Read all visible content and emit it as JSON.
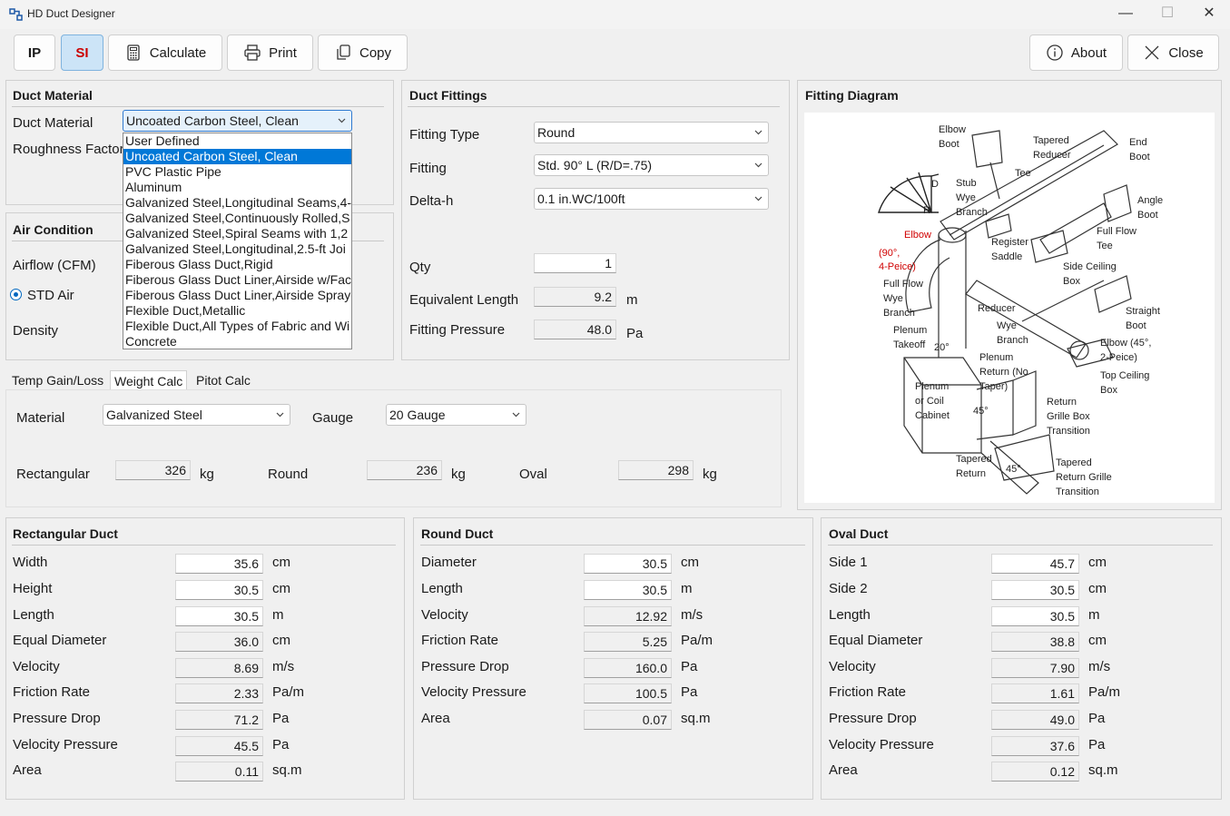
{
  "window": {
    "title": "HD Duct Designer",
    "minimize": "—",
    "maximize": "☐",
    "close": "✕"
  },
  "toolbar": {
    "ip": "IP",
    "si": "SI",
    "calculate": "Calculate",
    "print": "Print",
    "copy": "Copy",
    "about": "About",
    "close": "Close"
  },
  "duct_material": {
    "title": "Duct Material",
    "material_label": "Duct Material",
    "material_value": "Uncoated Carbon Steel, Clean",
    "roughness_label": "Roughness Factor",
    "options": [
      "User Defined",
      "Uncoated Carbon Steel, Clean",
      "PVC Plastic Pipe",
      "Aluminum",
      "Galvanized Steel,Longitudinal Seams,4-",
      "Galvanized Steel,Continuously Rolled,S",
      "Galvanized Steel,Spiral Seams with 1,2",
      "Galvanized Steel,Longitudinal,2.5-ft Joi",
      "Fiberous Glass Duct,Rigid",
      "Fiberous Glass Duct Liner,Airside w/Fac",
      "Fiberous Glass Duct Liner,Airside Spray",
      "Flexible Duct,Metallic",
      "Flexible Duct,All Types of Fabric and Wi",
      "Concrete"
    ],
    "selected_index": 1
  },
  "air_condition": {
    "title": "Air Condition",
    "airflow_label": "Airflow (CFM)",
    "std_air_label": "STD Air",
    "density_label": "Density"
  },
  "fittings": {
    "title": "Duct Fittings",
    "type_label": "Fitting Type",
    "type_value": "Round",
    "fitting_label": "Fitting",
    "fitting_value": "Std. 90° L (R/D=.75)",
    "deltah_label": "Delta-h",
    "deltah_value": "0.1 in.WC/100ft",
    "qty_label": "Qty",
    "qty_value": "1",
    "eqlen_label": "Equivalent Length",
    "eqlen_value": "9.2",
    "eqlen_unit": "m",
    "press_label": "Fitting Pressure",
    "press_value": "48.0",
    "press_unit": "Pa"
  },
  "tabs": [
    "Temp Gain/Loss",
    "Weight Calc",
    "Pitot Calc"
  ],
  "active_tab": 1,
  "weight": {
    "material_label": "Material",
    "material_value": "Galvanized Steel",
    "gauge_label": "Gauge",
    "gauge_value": "20 Gauge",
    "rect_label": "Rectangular",
    "rect_value": "326",
    "rect_unit": "kg",
    "round_label": "Round",
    "round_value": "236",
    "round_unit": "kg",
    "oval_label": "Oval",
    "oval_value": "298",
    "oval_unit": "kg"
  },
  "diagram": {
    "title": "Fitting Diagram",
    "labels": {
      "elbow_boot": [
        "Elbow",
        "Boot"
      ],
      "tapered_reducer": [
        "Tapered",
        "Reducer"
      ],
      "end_boot": [
        "End",
        "Boot"
      ],
      "tee": "Tee",
      "stub_wye": [
        "Stub",
        "Wye",
        "Branch"
      ],
      "angle_boot": [
        "Angle",
        "Boot"
      ],
      "elbow_red": [
        "Elbow",
        "(90°,",
        "4-Peice)"
      ],
      "register_saddle": [
        "Register",
        "Saddle"
      ],
      "full_flow_tee": [
        "Full Flow",
        "Tee"
      ],
      "side_ceiling": [
        "Side Ceiling",
        "Box"
      ],
      "full_flow_wye": [
        "Full Flow",
        "Wye",
        "Branch"
      ],
      "reducer": "Reducer",
      "wye_branch": [
        "Wye",
        "Branch"
      ],
      "straight_boot": [
        "Straight",
        "Boot"
      ],
      "plenum_takeoff": [
        "Plenum",
        "Takeoff"
      ],
      "plenum_return": [
        "Plenum",
        "Return (No",
        "Taper)"
      ],
      "elbow_45": [
        "Elbow (45°,",
        "2-Peice)"
      ],
      "top_ceiling": [
        "Top Ceiling",
        "Box"
      ],
      "plenum_coil": [
        "Plenum",
        "or Coil",
        "Cabinet"
      ],
      "return_grille": [
        "Return",
        "Grille Box",
        "Transition"
      ],
      "tapered_return": [
        "Tapered",
        "Return"
      ],
      "tapered_return_grille": [
        "Tapered",
        "Return Grille",
        "Transition"
      ],
      "d": "D",
      "r": "R",
      "deg20": "20°",
      "deg45a": "45°",
      "deg45b": "45°"
    }
  },
  "rect_duct": {
    "title": "Rectangular Duct",
    "rows": [
      {
        "label": "Width",
        "value": "35.6",
        "unit": "cm",
        "editable": true
      },
      {
        "label": "Height",
        "value": "30.5",
        "unit": "cm",
        "editable": true
      },
      {
        "label": "Length",
        "value": "30.5",
        "unit": "m",
        "editable": true
      },
      {
        "label": "Equal Diameter",
        "value": "36.0",
        "unit": "cm",
        "editable": false
      },
      {
        "label": "Velocity",
        "value": "8.69",
        "unit": "m/s",
        "editable": false
      },
      {
        "label": "Friction Rate",
        "value": "2.33",
        "unit": "Pa/m",
        "editable": false
      },
      {
        "label": "Pressure Drop",
        "value": "71.2",
        "unit": "Pa",
        "editable": false
      },
      {
        "label": "Velocity Pressure",
        "value": "45.5",
        "unit": "Pa",
        "editable": false
      },
      {
        "label": "Area",
        "value": "0.11",
        "unit": "sq.m",
        "editable": false
      }
    ]
  },
  "round_duct": {
    "title": "Round Duct",
    "rows": [
      {
        "label": "Diameter",
        "value": "30.5",
        "unit": "cm",
        "editable": true
      },
      {
        "label": "Length",
        "value": "30.5",
        "unit": "m",
        "editable": true
      },
      {
        "label": "Velocity",
        "value": "12.92",
        "unit": "m/s",
        "editable": false
      },
      {
        "label": "Friction Rate",
        "value": "5.25",
        "unit": "Pa/m",
        "editable": false
      },
      {
        "label": "Pressure Drop",
        "value": "160.0",
        "unit": "Pa",
        "editable": false
      },
      {
        "label": "Velocity Pressure",
        "value": "100.5",
        "unit": "Pa",
        "editable": false
      },
      {
        "label": "Area",
        "value": "0.07",
        "unit": "sq.m",
        "editable": false
      }
    ]
  },
  "oval_duct": {
    "title": "Oval Duct",
    "rows": [
      {
        "label": "Side 1",
        "value": "45.7",
        "unit": "cm",
        "editable": true
      },
      {
        "label": "Side 2",
        "value": "30.5",
        "unit": "cm",
        "editable": true
      },
      {
        "label": "Length",
        "value": "30.5",
        "unit": "m",
        "editable": true
      },
      {
        "label": "Equal Diameter",
        "value": "38.8",
        "unit": "cm",
        "editable": false
      },
      {
        "label": "Velocity",
        "value": "7.90",
        "unit": "m/s",
        "editable": false
      },
      {
        "label": "Friction Rate",
        "value": "1.61",
        "unit": "Pa/m",
        "editable": false
      },
      {
        "label": "Pressure Drop",
        "value": "49.0",
        "unit": "Pa",
        "editable": false
      },
      {
        "label": "Velocity Pressure",
        "value": "37.6",
        "unit": "Pa",
        "editable": false
      },
      {
        "label": "Area",
        "value": "0.12",
        "unit": "sq.m",
        "editable": false
      }
    ]
  }
}
